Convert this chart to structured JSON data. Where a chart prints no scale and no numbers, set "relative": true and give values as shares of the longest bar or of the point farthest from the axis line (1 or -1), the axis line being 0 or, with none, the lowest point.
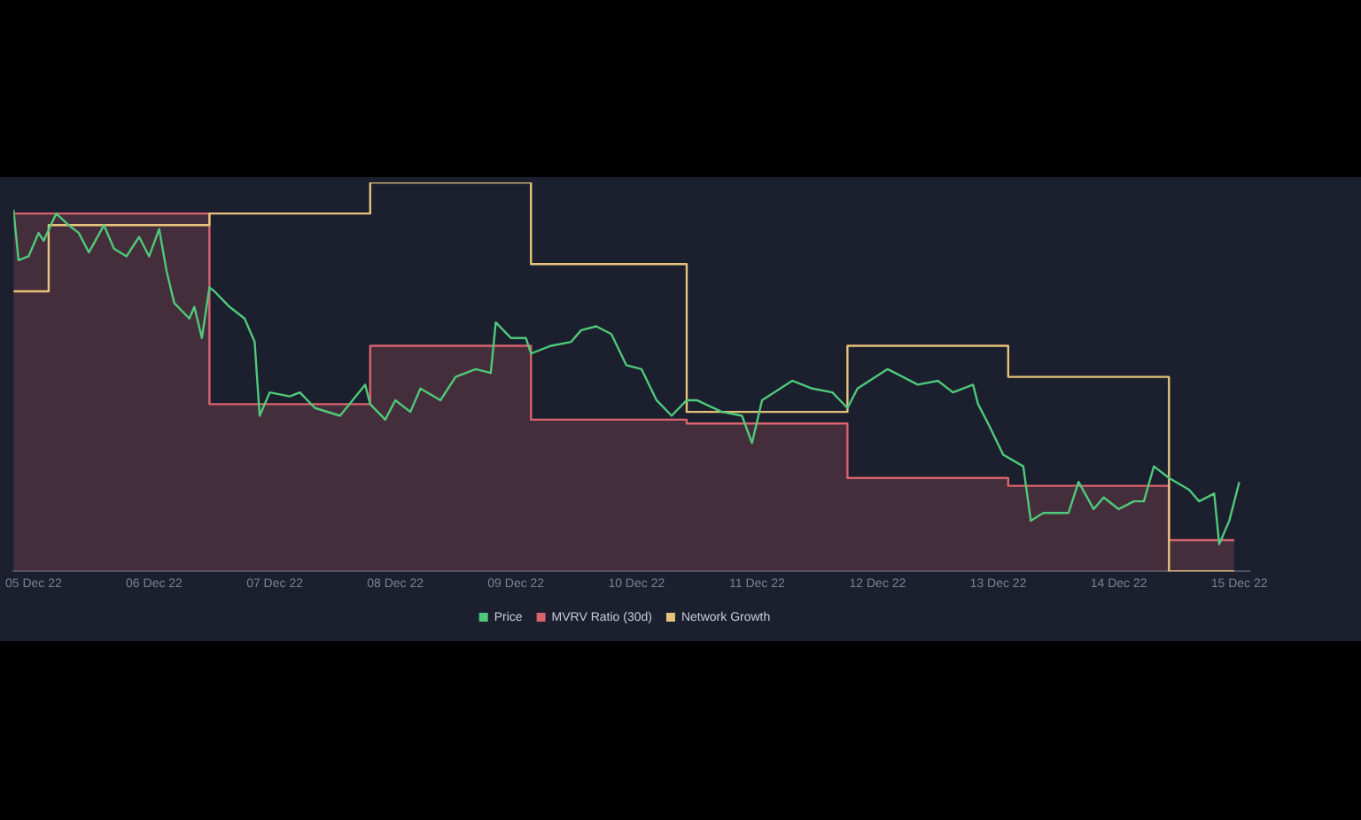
{
  "chart_data": {
    "type": "line",
    "relative": true,
    "legend": "bottom",
    "xlim": [
      "--12-04T20:00",
      "--12-15T02:00"
    ],
    "xticks": [
      {
        "value": "--12-05",
        "label": "05 Dec 22"
      },
      {
        "value": "--12-06",
        "label": "06 Dec 22"
      },
      {
        "value": "--12-07",
        "label": "07 Dec 22"
      },
      {
        "value": "--12-08",
        "label": "08 Dec 22"
      },
      {
        "value": "--12-09",
        "label": "09 Dec 22"
      },
      {
        "value": "--12-10",
        "label": "10 Dec 22"
      },
      {
        "value": "--12-11",
        "label": "11 Dec 22"
      },
      {
        "value": "--12-12",
        "label": "12 Dec 22"
      },
      {
        "value": "--12-13",
        "label": "13 Dec 22"
      },
      {
        "value": "--12-14",
        "label": "14 Dec 22"
      },
      {
        "value": "--12-15",
        "label": "15 Dec 22"
      }
    ],
    "series": [
      {
        "name": "Price",
        "type": "line",
        "color": "#4fc97a",
        "x": [
          "--12-04T20:00",
          "--12-04T21:00",
          "--12-04T23:00",
          "--12-05T01:00",
          "--12-05T02:00",
          "--12-05T04:30",
          "--12-05T07:00",
          "--12-05T09:00",
          "--12-05T11:00",
          "--12-05T14:00",
          "--12-05T16:00",
          "--12-05T18:30",
          "--12-05T21:00",
          "--12-05T23:00",
          "--12-06T01:00",
          "--12-06T02:30",
          "--12-06T04:00",
          "--12-06T07:00",
          "--12-06T08:00",
          "--12-06T09:30",
          "--12-06T11:00",
          "--12-06T12:00",
          "--12-06T15:00",
          "--12-06T18:00",
          "--12-06T20:00",
          "--12-06T21:00",
          "--12-06T23:00",
          "--12-07T03:00",
          "--12-07T05:00",
          "--12-07T08:00",
          "--12-07T13:00",
          "--12-07T18:00",
          "--12-07T19:00",
          "--12-07T22:00",
          "--12-08T00:00",
          "--12-08T03:00",
          "--12-08T05:00",
          "--12-08T09:00",
          "--12-08T12:00",
          "--12-08T16:00",
          "--12-08T19:00",
          "--12-08T20:00",
          "--12-08T23:00",
          "--12-09T02:00",
          "--12-09T03:00",
          "--12-09T07:00",
          "--12-09T11:00",
          "--12-09T13:00",
          "--12-09T16:00",
          "--12-09T19:00",
          "--12-09T22:00",
          "--12-10T01:00",
          "--12-10T04:00",
          "--12-10T07:00",
          "--12-10T10:00",
          "--12-10T12:00",
          "--12-10T17:00",
          "--12-10T21:00",
          "--12-10T23:00",
          "--12-11T01:00",
          "--12-11T07:00",
          "--12-11T11:00",
          "--12-11T15:00",
          "--12-11T18:00",
          "--12-11T20:00",
          "--12-12T02:00",
          "--12-12T08:00",
          "--12-12T12:00",
          "--12-12T15:00",
          "--12-12T19:00",
          "--12-12T20:00",
          "--12-12T22:00",
          "--12-13T01:00",
          "--12-13T05:00",
          "--12-13T06:30",
          "--12-13T09:00",
          "--12-13T12:00",
          "--12-13T14:00",
          "--12-13T16:00",
          "--12-13T19:00",
          "--12-13T21:00",
          "--12-14T00:00",
          "--12-14T03:00",
          "--12-14T05:00",
          "--12-14T07:00",
          "--12-14T10:00",
          "--12-14T14:00",
          "--12-14T16:00",
          "--12-14T19:00",
          "--12-14T20:00",
          "--12-14T22:00",
          "--12-15T00:00"
        ],
        "values": [
          0.93,
          0.8,
          0.81,
          0.87,
          0.85,
          0.92,
          0.89,
          0.87,
          0.82,
          0.89,
          0.83,
          0.81,
          0.86,
          0.81,
          0.88,
          0.77,
          0.69,
          0.65,
          0.68,
          0.6,
          0.73,
          0.72,
          0.68,
          0.65,
          0.59,
          0.4,
          0.46,
          0.45,
          0.46,
          0.42,
          0.4,
          0.48,
          0.43,
          0.39,
          0.44,
          0.41,
          0.47,
          0.44,
          0.5,
          0.52,
          0.51,
          0.64,
          0.6,
          0.6,
          0.56,
          0.58,
          0.59,
          0.62,
          0.63,
          0.61,
          0.53,
          0.52,
          0.44,
          0.4,
          0.44,
          0.44,
          0.41,
          0.4,
          0.33,
          0.44,
          0.49,
          0.47,
          0.46,
          0.42,
          0.47,
          0.52,
          0.48,
          0.49,
          0.46,
          0.48,
          0.43,
          0.38,
          0.3,
          0.27,
          0.13,
          0.15,
          0.15,
          0.15,
          0.23,
          0.16,
          0.19,
          0.16,
          0.18,
          0.18,
          0.27,
          0.24,
          0.21,
          0.18,
          0.2,
          0.07,
          0.13,
          0.23
        ]
      },
      {
        "name": "MVRV Ratio (30d)",
        "type": "area",
        "color": "#d9636c",
        "x": [
          "--12-04T20:00",
          "--12-06T11:00",
          "--12-06T11:00",
          "--12-07T19:00",
          "--12-07T19:00",
          "--12-09T03:00",
          "--12-09T03:00",
          "--12-10T10:00",
          "--12-10T10:00",
          "--12-11T18:00",
          "--12-11T18:00",
          "--12-13T02:00",
          "--12-13T02:00",
          "--12-14T10:00",
          "--12-14T10:00",
          "--12-14T23:00"
        ],
        "values": [
          0.92,
          0.92,
          0.43,
          0.43,
          0.58,
          0.58,
          0.39,
          0.39,
          0.38,
          0.38,
          0.24,
          0.24,
          0.22,
          0.22,
          0.08,
          0.08
        ]
      },
      {
        "name": "Network Growth",
        "type": "step",
        "color": "#e6c27a",
        "x": [
          "--12-04T20:00",
          "--12-05T03:00",
          "--12-06T11:00",
          "--12-07T19:00",
          "--12-09T03:00",
          "--12-10T10:00",
          "--12-11T18:00",
          "--12-13T02:00",
          "--12-14T10:00",
          "--12-14T23:00"
        ],
        "values": [
          0.72,
          0.89,
          0.92,
          1,
          0.79,
          0.41,
          0.58,
          0.5,
          0,
          0
        ]
      }
    ]
  }
}
